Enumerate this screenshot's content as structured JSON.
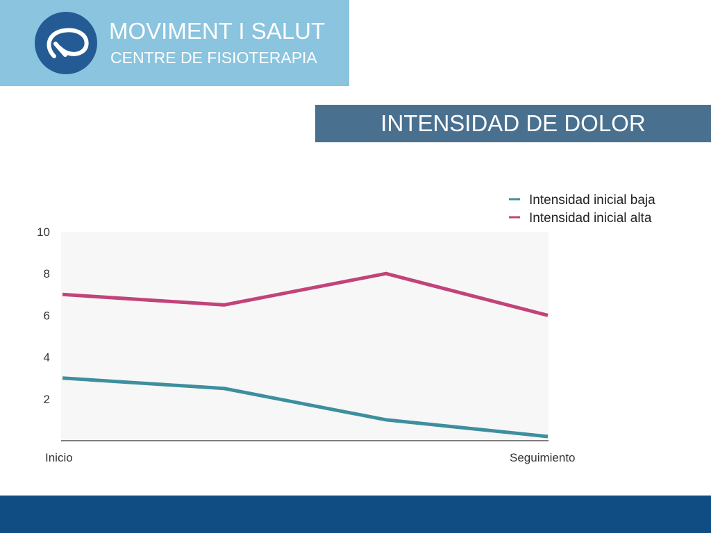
{
  "header": {
    "brand_line1": "MOVIMENT I SALUT",
    "brand_line2": "CENTRE DE FISIOTERAPIA",
    "logo_icon": "loop-icon"
  },
  "title": "INTENSIDAD DE DOLOR",
  "colors": {
    "header": "#8ac4df",
    "logo": "#245b94",
    "title_bar": "#4a7090",
    "footer": "#0f4d82",
    "series_low": "#3d8f9e",
    "series_high": "#c2437a"
  },
  "chart_data": {
    "type": "line",
    "x": [
      "Inicio",
      "",
      "",
      "Seguimiento"
    ],
    "x_tick_labels": [
      "Inicio",
      "Seguimiento"
    ],
    "yticks": [
      2,
      4,
      6,
      8,
      10
    ],
    "ylim": [
      0,
      10
    ],
    "grid": false,
    "legend": "top-right",
    "series": [
      {
        "name": "Intensidad inicial baja",
        "values": [
          3,
          2.5,
          1,
          0.2
        ],
        "color": "#3d8f9e"
      },
      {
        "name": "Intensidad inicial alta",
        "values": [
          7,
          6.5,
          8,
          6
        ],
        "color": "#c2437a"
      }
    ]
  }
}
